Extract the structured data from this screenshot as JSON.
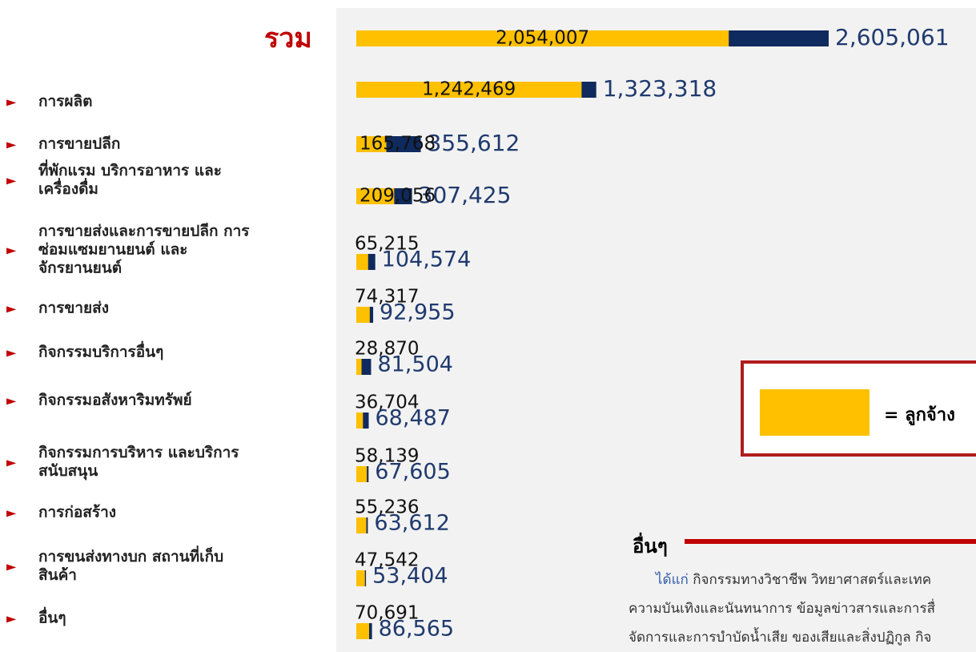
{
  "chart_data": {
    "type": "bar",
    "orientation": "horizontal",
    "categories": [
      "รวม",
      "การผลิต",
      "การขายปลีก",
      "ที่พักแรม บริการอาหาร และเครื่องดื่ม",
      "การขายส่งและการขายปลีก การซ่อมแซมยานยนต์ และจักรยานยนต์",
      "การขายส่ง",
      "กิจกรรมบริการอื่นๆ",
      "กิจกรรมอสังหาริมทรัพย์",
      "กิจกรรมการบริหาร และบริการสนับสนุน",
      "การก่อสร้าง",
      "การขนส่งทางบก สถานที่เก็บสินค้า",
      "อื่นๆ"
    ],
    "xlim": [
      0,
      2605061
    ],
    "series": [
      {
        "color": "#0f2a5e",
        "values": [
          2605061,
          1323318,
          355612,
          307425,
          104574,
          92955,
          81504,
          68487,
          67605,
          63612,
          53404,
          86565
        ],
        "value_labels": [
          "2,605,061",
          "1,323,318",
          "355,612",
          "307,425",
          "104,574",
          "92,955",
          "81,504",
          "68,487",
          "67,605",
          "63,612",
          "53,404",
          "86,565"
        ]
      },
      {
        "name": "= ลูกจ้าง",
        "color": "#ffc000",
        "values": [
          2054007,
          1242469,
          165768,
          209056,
          65215,
          74317,
          28870,
          36704,
          58139,
          55236,
          47542,
          70691
        ],
        "value_labels": [
          "2,054,007",
          "1,242,469",
          "165,768",
          "209,056",
          "65,215",
          "74,317",
          "28,870",
          "36,704",
          "58,139",
          "55,236",
          "47,542",
          "70,691"
        ]
      }
    ]
  },
  "note": {
    "title": "อื่นๆ",
    "lead": "ได้แก่",
    "lines": [
      " กิจกรรมทางวิชาชีพ วิทยาศาสตร์และเทค",
      "ความบันเทิงและนันทนาการ ข้อมูลข่าวสารและการสื่",
      "จัดการและการบำบัดน้ำเสีย ของเสียและสิ่งปฏิกูล กิจ"
    ]
  }
}
